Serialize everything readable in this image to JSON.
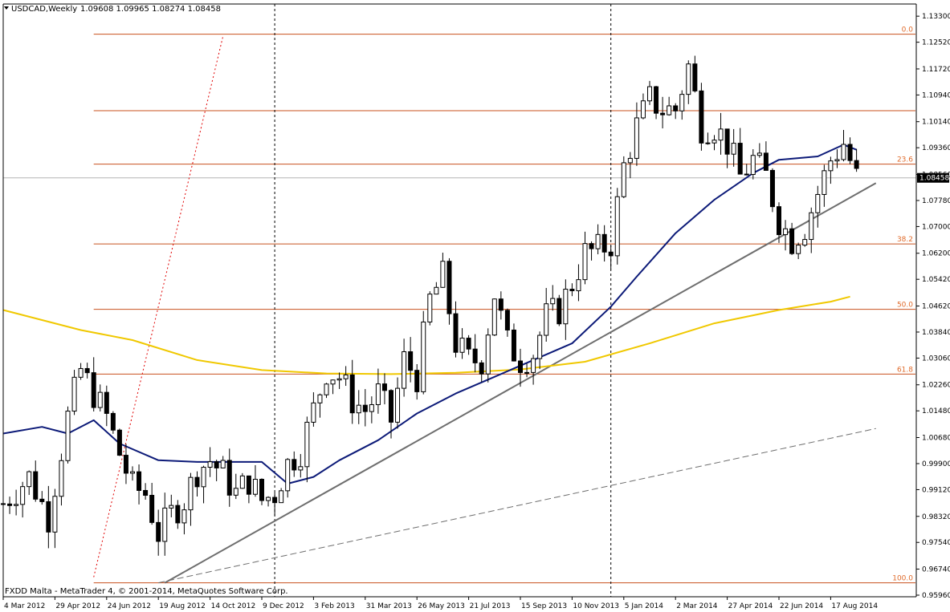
{
  "header": {
    "symbol": "USDCAD,Weekly",
    "ohlc": "1.09608 1.09965 1.08274 1.08458"
  },
  "footer": {
    "copyright": "FXDD Malta - MetaTrader 4, © 2001-2014, MetaQuotes Software Corp."
  },
  "current_price": "1.08458",
  "colors": {
    "fib": "#c8501e",
    "fib_label": "#e06a2a",
    "ma_long": "#f0c800",
    "ma_short": "#0c1a78",
    "trend": "#6e6e6e",
    "fan": "#e00000",
    "price_box": "#000000"
  },
  "chart_data": {
    "type": "candlestick",
    "title": "USDCAD,Weekly",
    "xlabel": "",
    "ylabel": "",
    "ylim": [
      0.9596,
      1.134
    ],
    "price_ticks": [
      "1.13300",
      "1.12520",
      "1.11720",
      "1.10940",
      "1.10140",
      "1.09360",
      "1.08560",
      "1.07780",
      "1.07000",
      "1.06200",
      "1.05420",
      "1.04620",
      "1.03840",
      "1.03060",
      "1.02260",
      "1.01480",
      "1.00680",
      "0.99900",
      "0.99120",
      "0.98320",
      "0.97540",
      "0.96740",
      "0.95960"
    ],
    "time_labels": [
      {
        "label": "4 Mar 2012",
        "week": 0
      },
      {
        "label": "29 Apr 2012",
        "week": 8
      },
      {
        "label": "24 Jun 2012",
        "week": 16
      },
      {
        "label": "19 Aug 2012",
        "week": 24
      },
      {
        "label": "14 Oct 2012",
        "week": 32
      },
      {
        "label": "9 Dec 2012",
        "week": 40
      },
      {
        "label": "3 Feb 2013",
        "week": 48
      },
      {
        "label": "31 Mar 2013",
        "week": 56
      },
      {
        "label": "26 May 2013",
        "week": 64
      },
      {
        "label": "21 Jul 2013",
        "week": 72
      },
      {
        "label": "15 Sep 2013",
        "week": 80
      },
      {
        "label": "10 Nov 2013",
        "week": 88
      },
      {
        "label": "5 Jan 2014",
        "week": 96
      },
      {
        "label": "2 Mar 2014",
        "week": 104
      },
      {
        "label": "27 Apr 2014",
        "week": 112
      },
      {
        "label": "22 Jun 2014",
        "week": 120
      },
      {
        "label": "17 Aug 2014",
        "week": 128
      }
    ],
    "anchors": [
      {
        "week": 0,
        "price": 0.987
      },
      {
        "week": 4,
        "price": 0.995
      },
      {
        "week": 7,
        "price": 0.983
      },
      {
        "week": 10,
        "price": 1.013
      },
      {
        "week": 12,
        "price": 1.027
      },
      {
        "week": 14,
        "price": 1.02
      },
      {
        "week": 16,
        "price": 1.013
      },
      {
        "week": 18,
        "price": 1.002
      },
      {
        "week": 20,
        "price": 0.992
      },
      {
        "week": 22,
        "price": 0.99
      },
      {
        "week": 24,
        "price": 0.978
      },
      {
        "week": 26,
        "price": 0.984
      },
      {
        "week": 28,
        "price": 0.988
      },
      {
        "week": 30,
        "price": 0.997
      },
      {
        "week": 32,
        "price": 1.0
      },
      {
        "week": 34,
        "price": 0.996
      },
      {
        "week": 36,
        "price": 0.99
      },
      {
        "week": 38,
        "price": 0.994
      },
      {
        "week": 40,
        "price": 0.988
      },
      {
        "week": 42,
        "price": 0.99
      },
      {
        "week": 44,
        "price": 0.999
      },
      {
        "week": 46,
        "price": 1.003
      },
      {
        "week": 48,
        "price": 1.015
      },
      {
        "week": 50,
        "price": 1.027
      },
      {
        "week": 52,
        "price": 1.025
      },
      {
        "week": 54,
        "price": 1.018
      },
      {
        "week": 56,
        "price": 1.015
      },
      {
        "week": 58,
        "price": 1.02
      },
      {
        "week": 60,
        "price": 1.012
      },
      {
        "week": 62,
        "price": 1.03
      },
      {
        "week": 64,
        "price": 1.025
      },
      {
        "week": 66,
        "price": 1.048
      },
      {
        "week": 68,
        "price": 1.055
      },
      {
        "week": 70,
        "price": 1.035
      },
      {
        "week": 72,
        "price": 1.03
      },
      {
        "week": 74,
        "price": 1.03
      },
      {
        "week": 76,
        "price": 1.05
      },
      {
        "week": 78,
        "price": 1.035
      },
      {
        "week": 80,
        "price": 1.03
      },
      {
        "week": 82,
        "price": 1.032
      },
      {
        "week": 84,
        "price": 1.043
      },
      {
        "week": 86,
        "price": 1.045
      },
      {
        "week": 88,
        "price": 1.053
      },
      {
        "week": 90,
        "price": 1.062
      },
      {
        "week": 92,
        "price": 1.063
      },
      {
        "week": 94,
        "price": 1.065
      },
      {
        "week": 96,
        "price": 1.088
      },
      {
        "week": 98,
        "price": 1.1
      },
      {
        "week": 100,
        "price": 1.108
      },
      {
        "week": 102,
        "price": 1.105
      },
      {
        "week": 104,
        "price": 1.105
      },
      {
        "week": 106,
        "price": 1.118
      },
      {
        "week": 108,
        "price": 1.1
      },
      {
        "week": 110,
        "price": 1.1
      },
      {
        "week": 112,
        "price": 1.095
      },
      {
        "week": 114,
        "price": 1.085
      },
      {
        "week": 116,
        "price": 1.09
      },
      {
        "week": 118,
        "price": 1.085
      },
      {
        "week": 120,
        "price": 1.072
      },
      {
        "week": 122,
        "price": 1.066
      },
      {
        "week": 124,
        "price": 1.07
      },
      {
        "week": 126,
        "price": 1.08
      },
      {
        "week": 128,
        "price": 1.09
      },
      {
        "week": 130,
        "price": 1.095
      },
      {
        "week": 132,
        "price": 1.0846
      }
    ],
    "fib_levels": [
      {
        "label": "0.0",
        "price": 1.1276
      },
      {
        "label": "",
        "price": 1.1047
      },
      {
        "label": "23.6",
        "price": 1.0887
      },
      {
        "label": "38.2",
        "price": 1.0648
      },
      {
        "label": "50.0",
        "price": 1.0452
      },
      {
        "label": "61.8",
        "price": 1.0258
      },
      {
        "label": "100.0",
        "price": 0.9633
      }
    ],
    "ma_long": [
      {
        "week": 0,
        "price": 1.045
      },
      {
        "week": 12,
        "price": 1.039
      },
      {
        "week": 20,
        "price": 1.036
      },
      {
        "week": 30,
        "price": 1.03
      },
      {
        "week": 40,
        "price": 1.027
      },
      {
        "week": 50,
        "price": 1.026
      },
      {
        "week": 60,
        "price": 1.0258
      },
      {
        "week": 70,
        "price": 1.0262
      },
      {
        "week": 80,
        "price": 1.0272
      },
      {
        "week": 90,
        "price": 1.0295
      },
      {
        "week": 100,
        "price": 1.035
      },
      {
        "week": 110,
        "price": 1.041
      },
      {
        "week": 120,
        "price": 1.045
      },
      {
        "week": 128,
        "price": 1.0475
      },
      {
        "week": 131,
        "price": 1.049
      }
    ],
    "ma_short": [
      {
        "week": 0,
        "price": 1.008
      },
      {
        "week": 6,
        "price": 1.01
      },
      {
        "week": 10,
        "price": 1.008
      },
      {
        "week": 14,
        "price": 1.012
      },
      {
        "week": 18,
        "price": 1.005
      },
      {
        "week": 24,
        "price": 1.0
      },
      {
        "week": 30,
        "price": 0.9995
      },
      {
        "week": 40,
        "price": 0.9995
      },
      {
        "week": 44,
        "price": 0.993
      },
      {
        "week": 48,
        "price": 0.995
      },
      {
        "week": 52,
        "price": 1.0
      },
      {
        "week": 58,
        "price": 1.006
      },
      {
        "week": 64,
        "price": 1.014
      },
      {
        "week": 70,
        "price": 1.02
      },
      {
        "week": 76,
        "price": 1.025
      },
      {
        "week": 82,
        "price": 1.03
      },
      {
        "week": 88,
        "price": 1.035
      },
      {
        "week": 94,
        "price": 1.046
      },
      {
        "week": 98,
        "price": 1.055
      },
      {
        "week": 104,
        "price": 1.068
      },
      {
        "week": 110,
        "price": 1.078
      },
      {
        "week": 116,
        "price": 1.086
      },
      {
        "week": 120,
        "price": 1.09
      },
      {
        "week": 126,
        "price": 1.091
      },
      {
        "week": 130,
        "price": 1.0945
      },
      {
        "week": 132,
        "price": 1.093
      }
    ],
    "trendlines": [
      {
        "style": "solid",
        "start": {
          "week": 25,
          "price": 0.9633
        },
        "end": {
          "week": 135,
          "price": 1.083
        }
      },
      {
        "style": "dashed",
        "start": {
          "week": 24,
          "price": 0.9633
        },
        "end": {
          "week": 135,
          "price": 1.0095
        }
      },
      {
        "style": "dotted-fan",
        "start": {
          "week": 14,
          "price": 0.965
        },
        "end": {
          "week": 34,
          "price": 1.127
        }
      }
    ],
    "vertical_markers": [
      42,
      94
    ],
    "grid": false,
    "legend": "none"
  }
}
